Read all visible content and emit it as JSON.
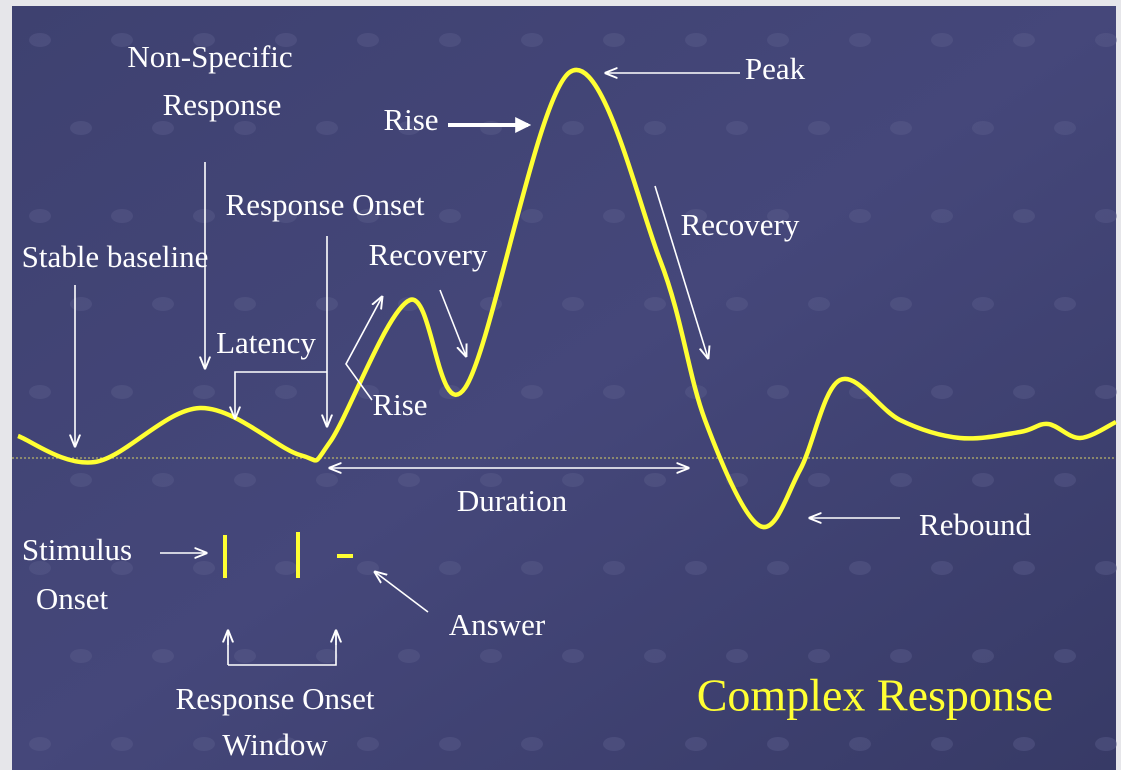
{
  "diagram": {
    "title": "Complex Response",
    "labels": {
      "non_specific_response": [
        "Non-Specific",
        "Response"
      ],
      "rise_top": "Rise",
      "peak": "Peak",
      "response_onset": "Response Onset",
      "recovery_left": "Recovery",
      "recovery_right": "Recovery",
      "stable_baseline": "Stable baseline",
      "latency": "Latency",
      "rise_bottom": "Rise",
      "duration": "Duration",
      "rebound": "Rebound",
      "stimulus_onset": [
        "Stimulus",
        "Onset"
      ],
      "answer": "Answer",
      "response_onset_window": [
        "Response Onset",
        "Window"
      ]
    }
  }
}
